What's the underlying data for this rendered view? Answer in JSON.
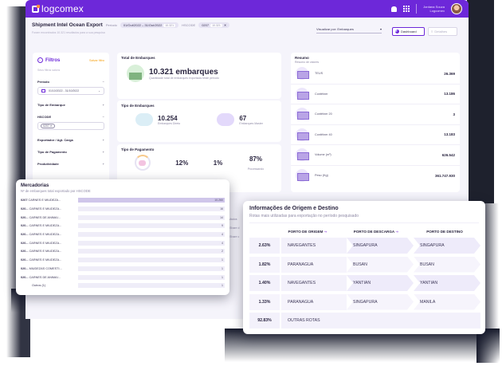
{
  "topbar": {
    "logo": "logcomex",
    "user_name": "Jordana Souza",
    "user_company": "Logcomex"
  },
  "header": {
    "title": "Shipment Intel Ocean Export",
    "period_label": "Período",
    "period_value": "01/Out/2022 – 31/Out/2022",
    "period_count": "10.321",
    "hscode_label": "HSCODE",
    "hscode_value": "0207",
    "hscode_count": "10.321",
    "subtitle": "Foram encontrados 10.321 resultados para a sua pesquisa",
    "view_by": "Visualizar por: Embarques",
    "dashboard_label": "Dashboard",
    "details_label": "Detalhes"
  },
  "filters": {
    "title": "Filtros",
    "save_label": "Salvar filtro",
    "saved_label": "Seus filtros salvos",
    "period_label": "Período",
    "period_value": "01/10/2022 - 31/10/2022",
    "tipo_embarque": "Tipo de Embarque",
    "hscode_label": "HSCODE",
    "hscode_tag": "0207",
    "exportador": "Exportador / Agt. Carga",
    "tipo_pagamento": "Tipo de Pagamento",
    "produtividade": "Produtividade"
  },
  "total": {
    "title": "Total de Embarques",
    "value": "10.321 embarques",
    "caption": "Quantidade total de embarques exportada neste período"
  },
  "tipo": {
    "title": "Tipo de Embarques",
    "direto_value": "10.254",
    "direto_label": "Embarques Direto",
    "master_value": "67",
    "master_label": "Embarques Master"
  },
  "pagamento": {
    "title": "Tipo de Pagamento",
    "values": [
      "12%",
      "1%",
      "87%"
    ],
    "legend": "Processando"
  },
  "resumo": {
    "title": "Resumo",
    "subtitle": "Resumo de valores",
    "items": [
      {
        "label": "TEUS",
        "value": "26.369"
      },
      {
        "label": "Contêiner",
        "value": "13.186"
      },
      {
        "label": "Contêiner 20",
        "value": "3"
      },
      {
        "label": "Contêiner 40",
        "value": "13.183"
      },
      {
        "label": "Volume (m³)",
        "value": "626.542"
      },
      {
        "label": "Peso (Kg)",
        "value": "361.747.930"
      }
    ]
  },
  "mercadorias": {
    "title": "Mercadorias",
    "subtitle": "Nº de embarques total exportado por HSCODE",
    "rows": [
      {
        "code": "0207",
        "label": "CARNES E MIUDEZA...",
        "value": "10.260",
        "pct": 100
      },
      {
        "code": "020...",
        "label": "CARNES E MIUDEZA...",
        "value": "16",
        "pct": 0
      },
      {
        "code": "020...",
        "label": "CARNES DE ANIMAI...",
        "value": "14",
        "pct": 0
      },
      {
        "code": "020...",
        "label": "CARNES E MIUDEZA...",
        "value": "9",
        "pct": 0
      },
      {
        "code": "020...",
        "label": "CARNES E MIUDEZA...",
        "value": "4",
        "pct": 0
      },
      {
        "code": "020...",
        "label": "CARNES E MIUDEZA...",
        "value": "4",
        "pct": 0
      },
      {
        "code": "020...",
        "label": "CARNES E MIUDEZA...",
        "value": "2",
        "pct": 0
      },
      {
        "code": "020...",
        "label": "CARNES E MIUDEZA...",
        "value": "1",
        "pct": 0
      },
      {
        "code": "020...",
        "label": "MIUDEZAS COMESTI...",
        "value": "1",
        "pct": 0
      },
      {
        "code": "020...",
        "label": "CARNES DE ANIMAI...",
        "value": "1",
        "pct": 0
      },
      {
        "code": "",
        "label": "Outros (1)",
        "value": "1",
        "pct": 0
      }
    ]
  },
  "origem": {
    "title": "Informações de Origem e Destino",
    "subtitle": "Rotas mais utilizadas para exportação no período pesquisado",
    "headers": [
      "PORTO DE ORIGEM",
      "PORTO DE DESCARGA",
      "PORTO DE DESTINO"
    ],
    "rows": [
      {
        "pct": "2.63%",
        "origem": "NAVEGANTES",
        "descarga": "SINGAPURA",
        "destino": "SINGAPURA"
      },
      {
        "pct": "1.82%",
        "origem": "PARANAGUA",
        "descarga": "BUSAN",
        "destino": "BUSAN"
      },
      {
        "pct": "1.40%",
        "origem": "NAVEGANTES",
        "descarga": "YANTIAN",
        "destino": "YANTIAN"
      },
      {
        "pct": "1.33%",
        "origem": "PARANAGUA",
        "descarga": "SINGAPURA",
        "destino": "MANILA"
      },
      {
        "pct": "92.83%",
        "origem": "OUTRAS ROTAS",
        "descarga": "",
        "destino": ""
      }
    ]
  },
  "peek": [
    "Mados",
    "(Share d",
    "(Share c"
  ]
}
